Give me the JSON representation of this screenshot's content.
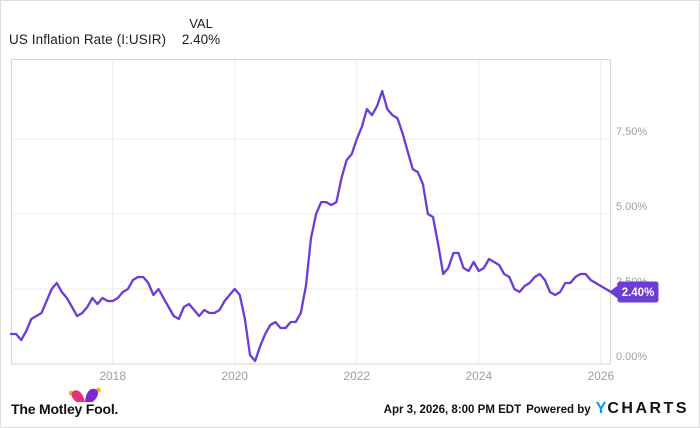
{
  "header": {
    "series_label": "US Inflation Rate (I:USIR)",
    "value_column_label": "VAL",
    "current_value": "2.40%"
  },
  "chart_data": {
    "type": "line",
    "title": "US Inflation Rate (I:USIR)",
    "series": [
      {
        "name": "US Inflation Rate",
        "unit": "%",
        "frequency": "monthly",
        "start_month": "2016-05",
        "end_month": "2026-03",
        "values": [
          1.0,
          1.0,
          0.8,
          1.1,
          1.5,
          1.6,
          1.7,
          2.1,
          2.5,
          2.7,
          2.4,
          2.2,
          1.9,
          1.6,
          1.7,
          1.9,
          2.2,
          2.0,
          2.2,
          2.1,
          2.1,
          2.2,
          2.4,
          2.5,
          2.8,
          2.9,
          2.9,
          2.7,
          2.3,
          2.5,
          2.2,
          1.9,
          1.6,
          1.5,
          1.9,
          2.0,
          1.8,
          1.6,
          1.8,
          1.7,
          1.7,
          1.8,
          2.1,
          2.3,
          2.5,
          2.3,
          1.5,
          0.3,
          0.1,
          0.6,
          1.0,
          1.3,
          1.4,
          1.2,
          1.2,
          1.4,
          1.4,
          1.7,
          2.6,
          4.2,
          5.0,
          5.4,
          5.4,
          5.3,
          5.4,
          6.2,
          6.8,
          7.0,
          7.5,
          7.9,
          8.5,
          8.3,
          8.6,
          9.1,
          8.5,
          8.3,
          8.2,
          7.7,
          7.1,
          6.5,
          6.4,
          6.0,
          5.0,
          4.9,
          4.0,
          3.0,
          3.2,
          3.7,
          3.7,
          3.2,
          3.1,
          3.4,
          3.1,
          3.2,
          3.5,
          3.4,
          3.3,
          3.0,
          2.9,
          2.5,
          2.4,
          2.6,
          2.7,
          2.9,
          3.0,
          2.8,
          2.4,
          2.3,
          2.4,
          2.7,
          2.7,
          2.9,
          3.0,
          3.0,
          2.8,
          2.7,
          2.6,
          2.5,
          2.4
        ]
      }
    ],
    "x_tick_labels": [
      "2018",
      "2020",
      "2022",
      "2024",
      "2026"
    ],
    "x_tick_indices": [
      20,
      44,
      68,
      92,
      116
    ],
    "y_tick_labels": [
      "0.00%",
      "2.50%",
      "5.00%",
      "7.50%"
    ],
    "y_tick_values": [
      0,
      2.5,
      5,
      7.5
    ],
    "ylim": [
      0,
      10.17
    ],
    "grid": true,
    "legend_position": "top-left-header",
    "last_value_label": "2.40%",
    "colors": {
      "line": "#6b3cd6",
      "badge": "#6b3cd6",
      "grid": "#ececec",
      "plot_border": "#d6d6d6",
      "tick_text": "#9aa0a6"
    }
  },
  "footer": {
    "brand": "The Motley Fool.",
    "timestamp": "Apr 3, 2026, 8:00 PM EDT",
    "powered_by": "Powered by",
    "ycharts_y": "Y",
    "ycharts_rest": "CHARTS"
  }
}
